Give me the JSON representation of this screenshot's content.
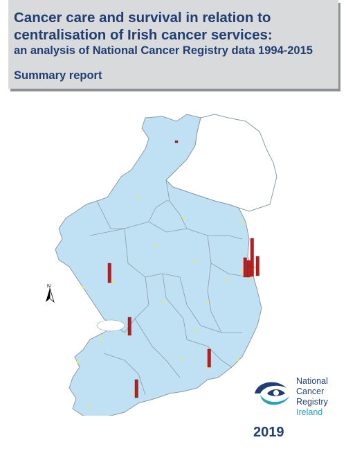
{
  "cover": {
    "title_line1": "Cancer care and survival in relation to",
    "title_line2": "centralisation of Irish cancer services:",
    "subtitle": "an analysis of National Cancer Registry data 1994-2015",
    "report_type": "Summary report",
    "year": "2019"
  },
  "logo": {
    "line1": "National",
    "line2": "Cancer",
    "line3": "Registry",
    "line4": "Ireland"
  },
  "map": {
    "north_label": "N",
    "colors": {
      "land": "#bfe1f3",
      "county_border": "#8a9aa6",
      "northern_ireland": "#ffffff",
      "bar": "#b81d22",
      "hospital_dot": "#f3e84a"
    },
    "icons": [
      "north-arrow-icon"
    ]
  },
  "colors": {
    "title_text": "#1f3e73",
    "title_box": "#d9dadc",
    "logo_teal": "#2aa3b8"
  }
}
